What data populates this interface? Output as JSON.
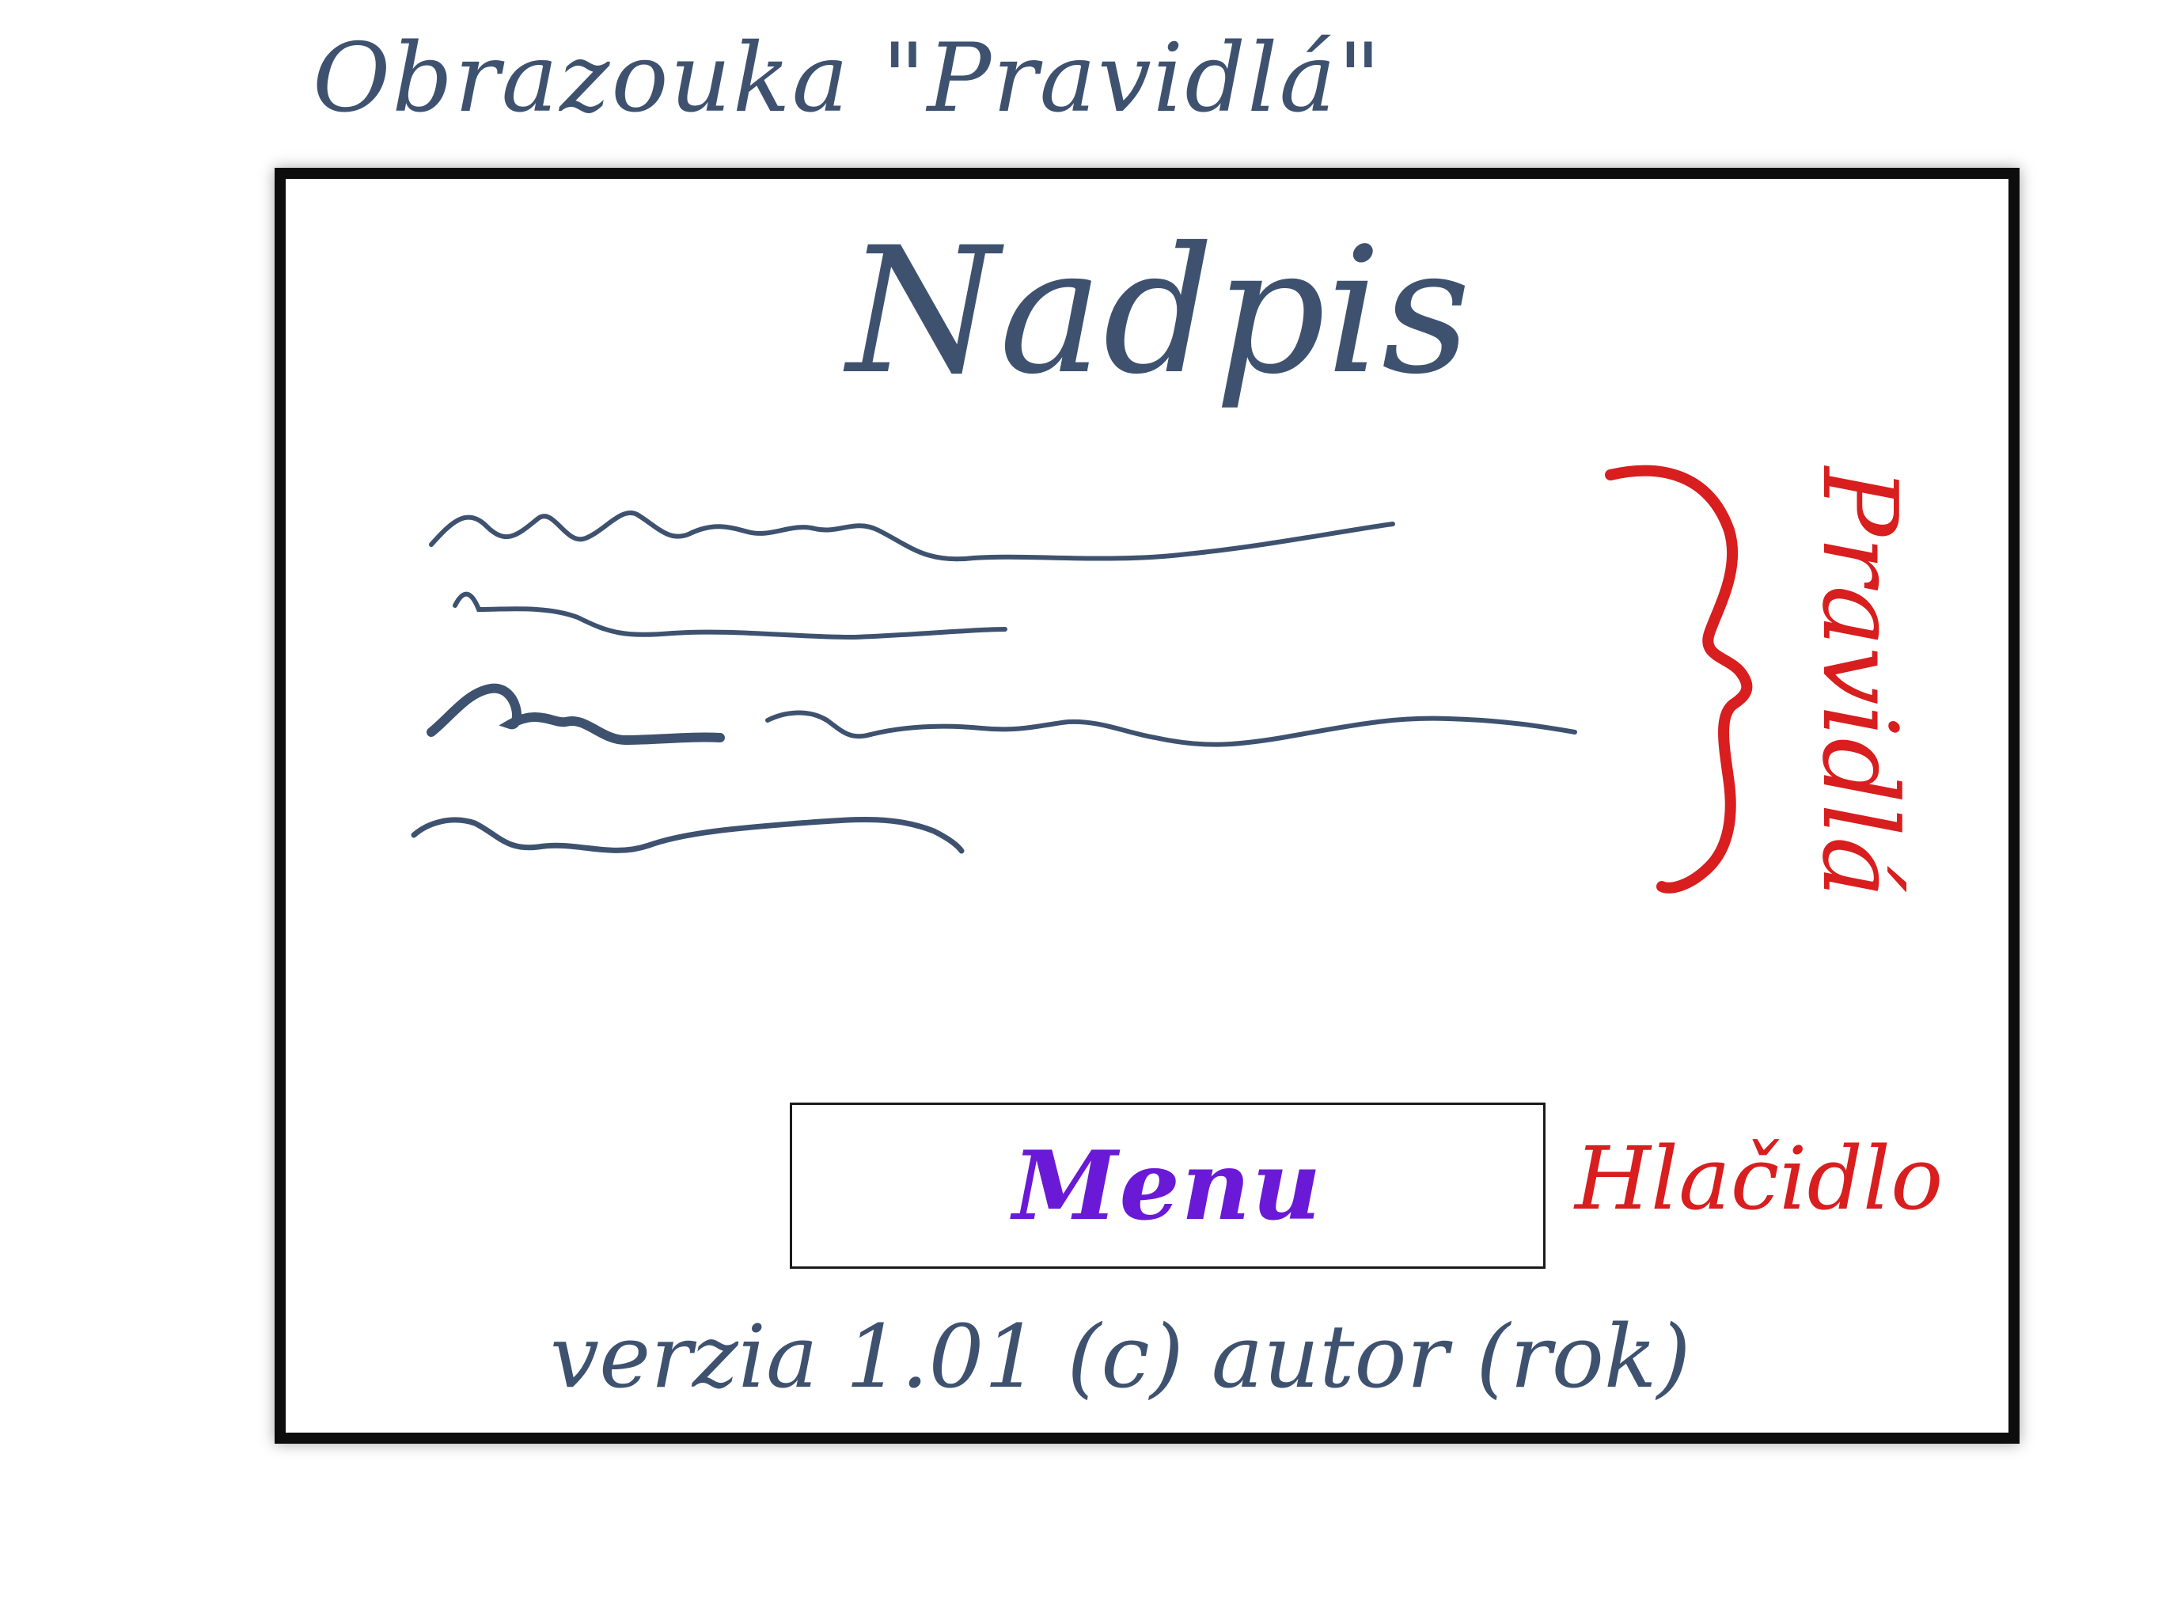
{
  "sketch": {
    "title": "Obrazouka \"Pravidlá\""
  },
  "screen": {
    "heading": "Nadpis",
    "rules_label": "Pravidlá",
    "menu_button_label": "Menu",
    "button_annotation": "Hlačidlo",
    "footer": "verzia 1.01 (c) autor (rok)"
  },
  "colors": {
    "ink_blue": "#3e5270",
    "annotation_red": "#d81e1e",
    "button_purple": "#6a1ad6",
    "frame_black": "#0d0d0d"
  }
}
